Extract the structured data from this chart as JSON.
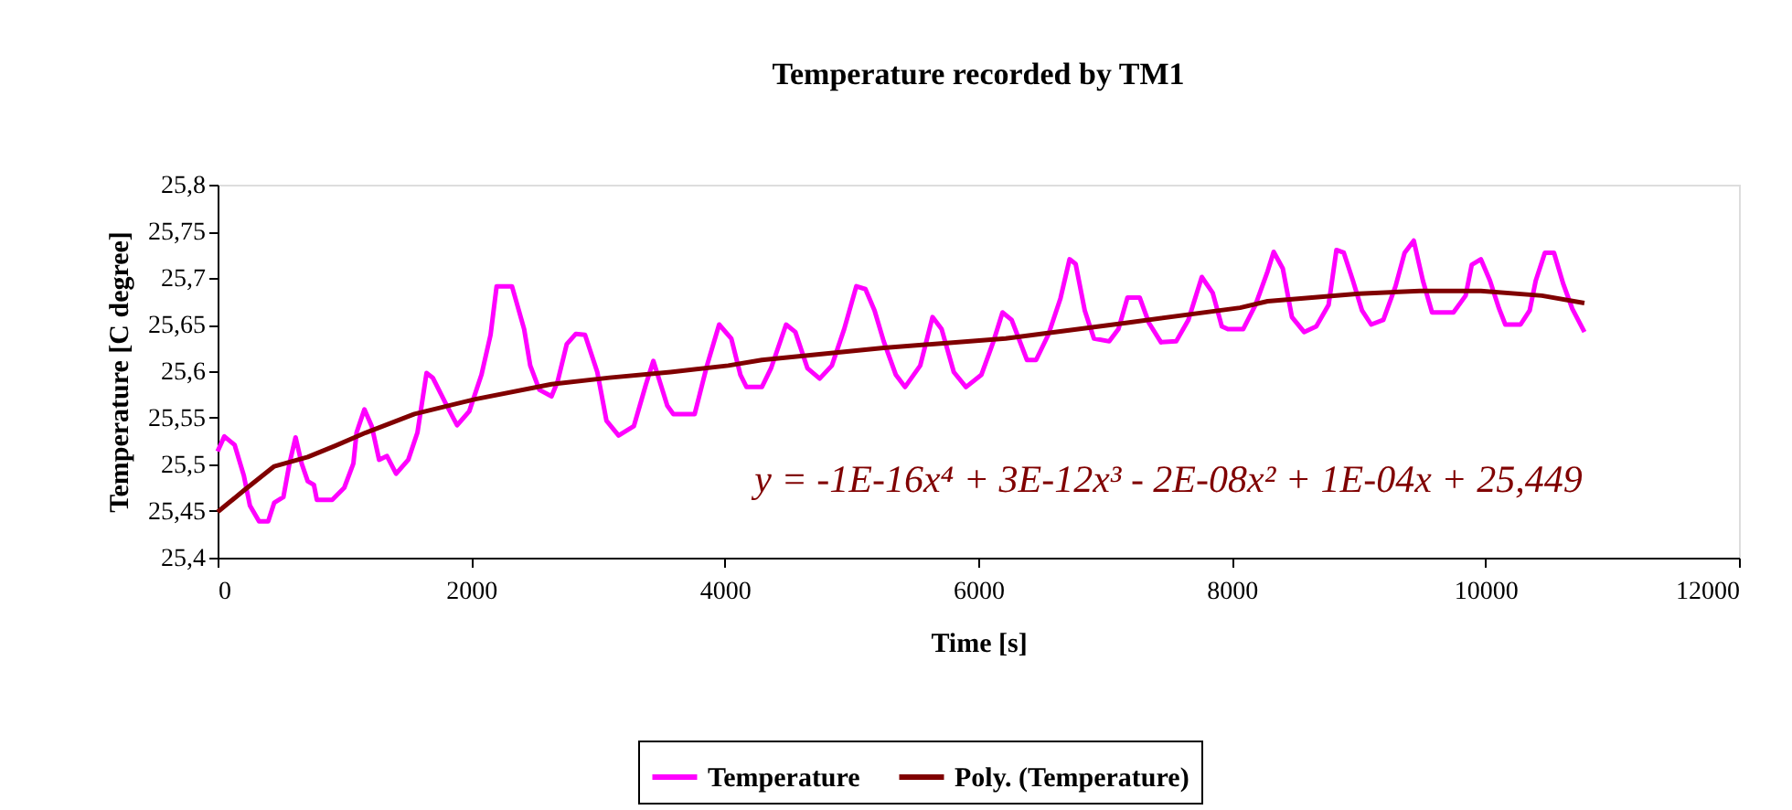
{
  "chart_data": {
    "type": "line",
    "title": "Temperature recorded by TM1",
    "xlabel": "Time [s]",
    "ylabel": "Temperature [C degree]",
    "xlim": [
      0,
      12000
    ],
    "xticks": [
      0,
      2000,
      4000,
      6000,
      8000,
      10000,
      12000
    ],
    "ylim": [
      25.4,
      25.8
    ],
    "yticks": [
      {
        "value": 25.4,
        "label": "25,4"
      },
      {
        "value": 25.45,
        "label": "25,45"
      },
      {
        "value": 25.5,
        "label": "25,5"
      },
      {
        "value": 25.55,
        "label": "25,55"
      },
      {
        "value": 25.6,
        "label": "25,6"
      },
      {
        "value": 25.65,
        "label": "25,65"
      },
      {
        "value": 25.7,
        "label": "25,7"
      },
      {
        "value": 25.75,
        "label": "25,75"
      },
      {
        "value": 25.8,
        "label": "25,8"
      }
    ],
    "grid": false,
    "legend": "bottom",
    "marker": "none",
    "line_style": "solid",
    "annotations": [
      "y = -1E-16x⁴ + 3E-12x³ - 2E-08x² + 1E-04x + 25,449"
    ],
    "series": [
      {
        "name": "Temperature",
        "color": "#ff00ff",
        "x": [
          0,
          53,
          134,
          207,
          255,
          327,
          399,
          447,
          519,
          567,
          615,
          663,
          711,
          760,
          783,
          904,
          999,
          1071,
          1096,
          1158,
          1216,
          1274,
          1336,
          1408,
          1504,
          1576,
          1648,
          1697,
          1793,
          1889,
          1985,
          2081,
          2153,
          2201,
          2322,
          2418,
          2466,
          2538,
          2634,
          2682,
          2754,
          2826,
          2898,
          2995,
          3067,
          3163,
          3283,
          3379,
          3437,
          3547,
          3595,
          3763,
          3860,
          3956,
          4052,
          4124,
          4172,
          4293,
          4365,
          4484,
          4557,
          4653,
          4749,
          4845,
          4942,
          5038,
          5110,
          5182,
          5254,
          5350,
          5422,
          5542,
          5639,
          5711,
          5807,
          5903,
          6024,
          6120,
          6191,
          6263,
          6384,
          6456,
          6552,
          6648,
          6720,
          6768,
          6840,
          6912,
          7033,
          7105,
          7177,
          7273,
          7345,
          7441,
          7561,
          7657,
          7763,
          7849,
          7921,
          7969,
          8089,
          8186,
          8282,
          8330,
          8402,
          8474,
          8570,
          8666,
          8763,
          8825,
          8883,
          8955,
          9027,
          9099,
          9195,
          9291,
          9363,
          9435,
          9507,
          9579,
          9748,
          9844,
          9892,
          9964,
          10036,
          10108,
          10157,
          10277,
          10349,
          10397,
          10469,
          10541,
          10613,
          10685,
          10781
        ],
        "values": [
          25.514,
          25.53,
          25.521,
          25.488,
          25.456,
          25.439,
          25.439,
          25.459,
          25.465,
          25.501,
          25.529,
          25.501,
          25.482,
          25.478,
          25.462,
          25.462,
          25.475,
          25.501,
          25.534,
          25.559,
          25.541,
          25.505,
          25.509,
          25.49,
          25.505,
          25.534,
          25.598,
          25.593,
          25.567,
          25.542,
          25.557,
          25.596,
          25.639,
          25.691,
          25.691,
          25.645,
          25.606,
          25.58,
          25.573,
          25.589,
          25.629,
          25.64,
          25.639,
          25.599,
          25.547,
          25.531,
          25.541,
          25.586,
          25.611,
          25.563,
          25.554,
          25.554,
          25.606,
          25.65,
          25.635,
          25.596,
          25.583,
          25.583,
          25.603,
          25.65,
          25.642,
          25.603,
          25.592,
          25.606,
          25.645,
          25.691,
          25.688,
          25.665,
          25.632,
          25.596,
          25.583,
          25.606,
          25.658,
          25.645,
          25.599,
          25.583,
          25.596,
          25.632,
          25.663,
          25.655,
          25.612,
          25.612,
          25.639,
          25.678,
          25.72,
          25.715,
          25.665,
          25.635,
          25.632,
          25.645,
          25.679,
          25.679,
          25.652,
          25.631,
          25.632,
          25.655,
          25.701,
          25.684,
          25.648,
          25.645,
          25.645,
          25.671,
          25.707,
          25.728,
          25.71,
          25.658,
          25.642,
          25.648,
          25.671,
          25.73,
          25.727,
          25.697,
          25.665,
          25.65,
          25.655,
          25.691,
          25.727,
          25.74,
          25.697,
          25.663,
          25.663,
          25.681,
          25.714,
          25.72,
          25.697,
          25.667,
          25.65,
          25.65,
          25.665,
          25.697,
          25.727,
          25.727,
          25.694,
          25.667,
          25.642
        ]
      },
      {
        "name": "Poly. (Temperature)",
        "color": "#800000",
        "x": [
          0,
          207,
          447,
          711,
          928,
          1168,
          1552,
          2033,
          2634,
          3091,
          3572,
          4028,
          4293,
          5254,
          6216,
          7177,
          8065,
          8282,
          9003,
          9483,
          9964,
          10445,
          10781
        ],
        "values": [
          25.449,
          25.472,
          25.498,
          25.508,
          25.52,
          25.534,
          25.554,
          25.57,
          25.586,
          25.593,
          25.599,
          25.606,
          25.612,
          25.625,
          25.635,
          25.652,
          25.668,
          25.675,
          25.683,
          25.686,
          25.686,
          25.681,
          25.673
        ]
      }
    ]
  }
}
